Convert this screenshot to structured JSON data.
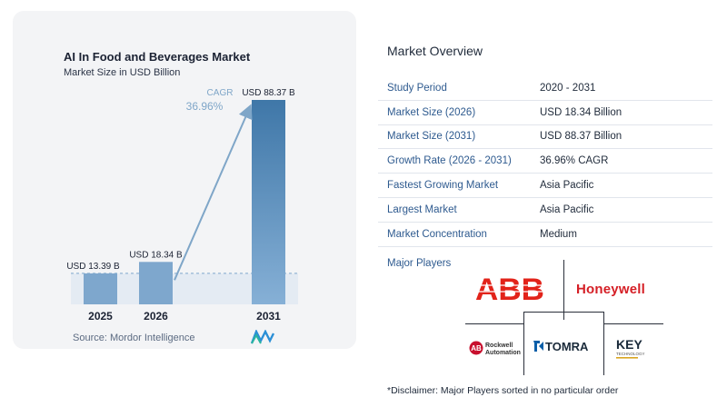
{
  "chart_data": {
    "type": "bar",
    "title": "AI In Food and Beverages Market",
    "subtitle": "Market Size in USD Billion",
    "categories": [
      "2025",
      "2026",
      "2031"
    ],
    "values": [
      13.39,
      18.34,
      88.37
    ],
    "value_labels": [
      "USD 13.39 B",
      "USD 18.34 B",
      "USD 88.37 B"
    ],
    "cagr_label": "CAGR",
    "cagr_value": "36.96%",
    "ylim": [
      0,
      100
    ],
    "grid": false
  },
  "source": "Source:  Mordor Intelligence",
  "colors": {
    "bar_light": "#7ea7cd",
    "bar_dark": "#3f77a8",
    "arrow": "#7fa6c8",
    "label_blue": "#2e5a8f",
    "abb_red": "#e2231a",
    "honeywell_red": "#d51f26",
    "tomra_blue": "#0a5ea8"
  },
  "overview": {
    "title": "Market Overview",
    "rows": [
      {
        "label": "Study Period",
        "value": "2020 - 2031"
      },
      {
        "label": "Market Size (2026)",
        "value": "USD 18.34 Billion"
      },
      {
        "label": "Market Size (2031)",
        "value": "USD 88.37 Billion"
      },
      {
        "label": "Growth Rate (2026 - 2031)",
        "value": "36.96% CAGR"
      },
      {
        "label": "Fastest Growing Market",
        "value": "Asia Pacific"
      },
      {
        "label": "Largest Market",
        "value": "Asia Pacific"
      },
      {
        "label": "Market Concentration",
        "value": "Medium"
      }
    ]
  },
  "players": {
    "title": "Major Players",
    "logos": {
      "abb": "ABB",
      "honeywell": "Honeywell",
      "rockwell_line1": "Rockwell",
      "rockwell_line2": "Automation",
      "tomra": "TOMRA",
      "key": "KEY",
      "key_sub": "TECHNOLOGY"
    }
  },
  "disclaimer": "*Disclaimer: Major Players sorted in no particular order"
}
